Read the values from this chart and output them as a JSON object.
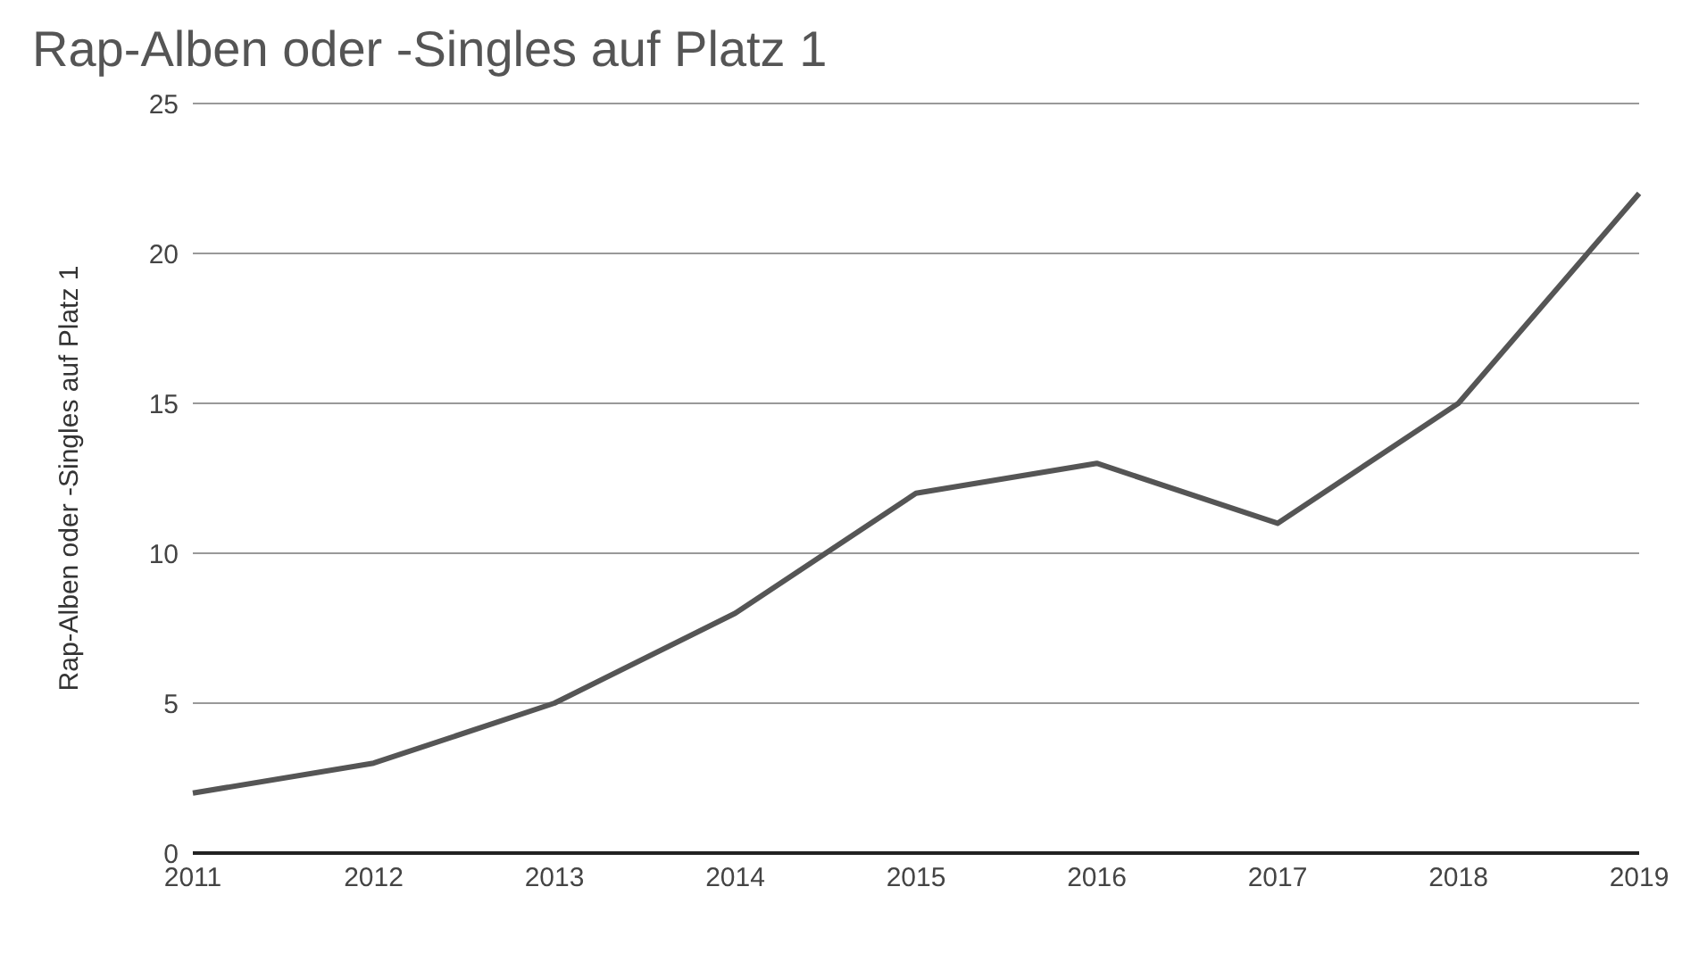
{
  "chart_data": {
    "type": "line",
    "title": "Rap-Alben oder -Singles auf Platz 1",
    "ylabel": "Rap-Alben oder -Singles auf Platz 1",
    "categories": [
      "2011",
      "2012",
      "2013",
      "2014",
      "2015",
      "2016",
      "2017",
      "2018",
      "2019"
    ],
    "series": [
      {
        "color": "#555555",
        "values": [
          2,
          3,
          5,
          8,
          12,
          13,
          11,
          15,
          22
        ]
      }
    ],
    "ylim": [
      0,
      25
    ],
    "yticks": [
      0,
      5,
      10,
      15,
      20,
      25
    ],
    "grid": "y",
    "legend": false,
    "marker": "none",
    "line_style": "solid"
  }
}
